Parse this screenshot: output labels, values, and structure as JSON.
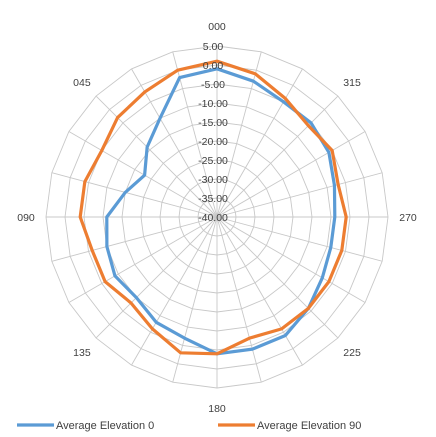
{
  "chart_data": {
    "type": "radar",
    "title": "",
    "direction": "clockwise-labels-reversed",
    "rlim": [
      -40,
      5
    ],
    "r_ticks": [
      "5.00",
      "0.00",
      "-5.00",
      "-10.00",
      "-15.00",
      "-20.00",
      "-25.00",
      "-30.00",
      "-35.00",
      "-40.00"
    ],
    "r_tick_values": [
      5,
      0,
      -5,
      -10,
      -15,
      -20,
      -25,
      -30,
      -35,
      -40
    ],
    "angle_labels_shown": [
      "000",
      "045",
      "090",
      "135",
      "180",
      "225",
      "270",
      "315"
    ],
    "angle_labels_bearing": [
      0,
      45,
      90,
      135,
      180,
      225,
      270,
      315
    ],
    "angles": [
      0,
      15,
      30,
      45,
      60,
      75,
      90,
      105,
      120,
      135,
      150,
      165,
      180,
      195,
      210,
      225,
      240,
      255,
      270,
      285,
      300,
      315,
      330,
      345
    ],
    "grid": true,
    "legend_position": "bottom",
    "series": [
      {
        "name": "Average Elevation 0",
        "color": "#5b9bd5",
        "values": [
          -1,
          -2,
          -10,
          -14,
          -18,
          -15,
          -11,
          -10,
          -9,
          -10,
          -8,
          -7,
          -4,
          -4,
          -4,
          -6,
          -8,
          -9,
          -9,
          -8,
          -6,
          -5,
          -5,
          -3
        ]
      },
      {
        "name": "Average Elevation 90",
        "color": "#ed7d31",
        "values": [
          1,
          0,
          -2,
          -3,
          -5,
          -4,
          -4,
          -6,
          -6,
          -8,
          -6,
          -3,
          -4,
          -7,
          -6,
          -6,
          -6,
          -6,
          -6,
          -7,
          -5,
          -6,
          -4,
          -1
        ]
      }
    ]
  }
}
